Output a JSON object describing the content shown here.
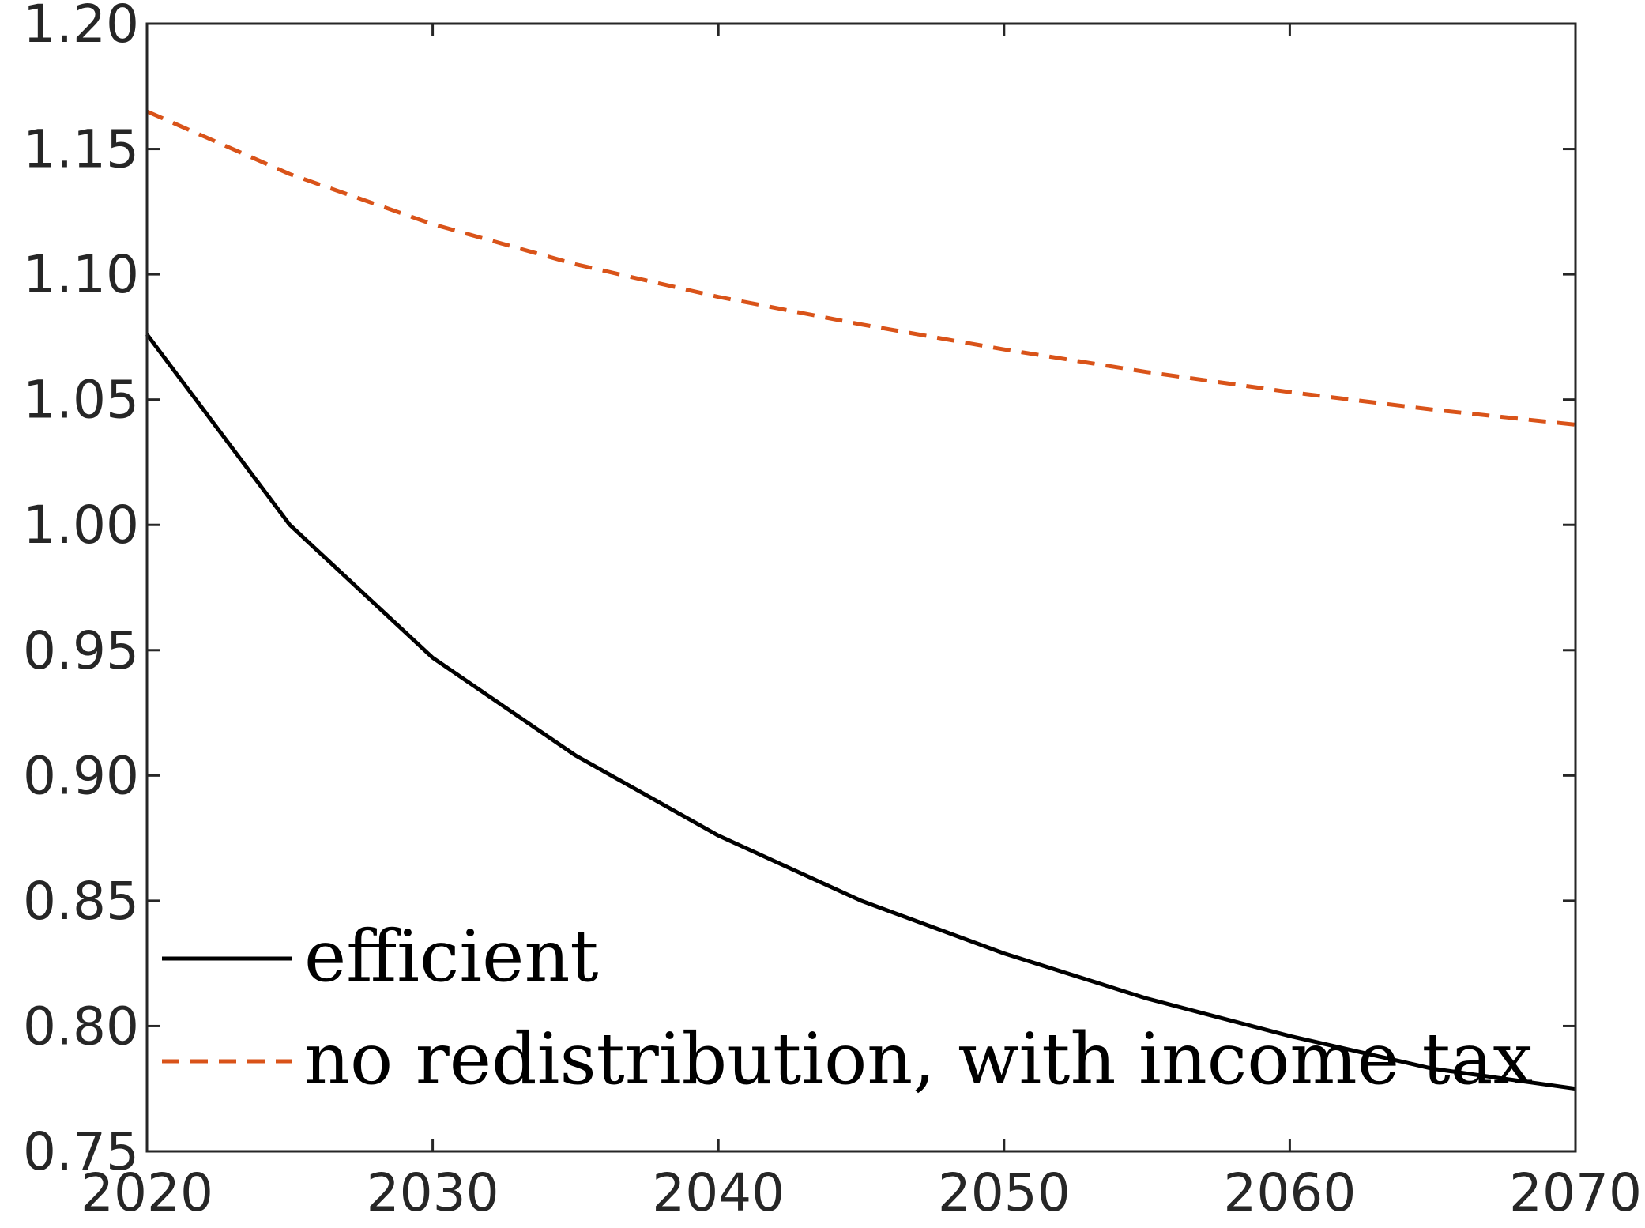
{
  "chart_data": {
    "type": "line",
    "title": "",
    "xlabel": "",
    "ylabel": "",
    "xlim": [
      2020,
      2070
    ],
    "ylim": [
      0.75,
      1.2
    ],
    "xticks": [
      "2020",
      "2030",
      "2040",
      "2050",
      "2060",
      "2070"
    ],
    "yticks": [
      "0.75",
      "0.80",
      "0.85",
      "0.90",
      "0.95",
      "1.00",
      "1.05",
      "1.10",
      "1.15",
      "1.20"
    ],
    "grid": false,
    "legend_position": "bottom-left",
    "x": [
      2020,
      2025,
      2030,
      2035,
      2040,
      2045,
      2050,
      2055,
      2060,
      2065,
      2070
    ],
    "series": [
      {
        "name": "efficient",
        "color": "#000000",
        "style": "solid",
        "values": [
          1.076,
          1.0,
          0.947,
          0.908,
          0.876,
          0.85,
          0.829,
          0.811,
          0.796,
          0.783,
          0.775
        ]
      },
      {
        "name": "no redistribution, with income tax",
        "color": "#D95319",
        "style": "dashed",
        "values": [
          1.165,
          1.14,
          1.12,
          1.104,
          1.091,
          1.08,
          1.07,
          1.061,
          1.053,
          1.046,
          1.04
        ]
      }
    ]
  }
}
